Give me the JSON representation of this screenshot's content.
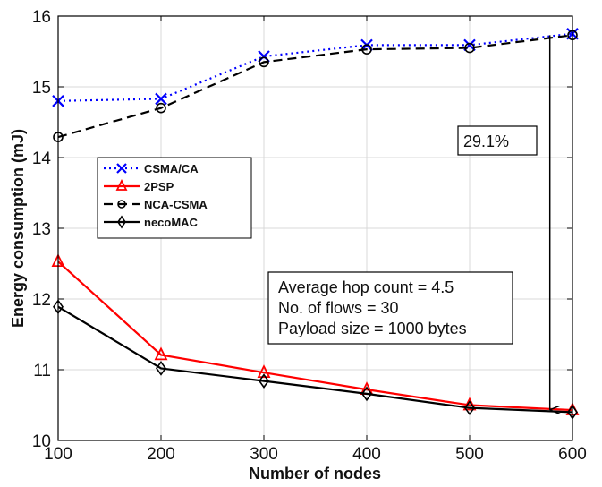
{
  "chart_data": {
    "type": "line",
    "xlabel": "Number of nodes",
    "ylabel": "Energy consumption (mJ)",
    "x": [
      100,
      200,
      300,
      400,
      500,
      600
    ],
    "xlim": [
      100,
      600
    ],
    "ylim": [
      10,
      16
    ],
    "xticks": [
      "100",
      "200",
      "300",
      "400",
      "500",
      "600"
    ],
    "yticks": [
      "10",
      "11",
      "12",
      "13",
      "14",
      "15",
      "16"
    ],
    "grid": true,
    "legend_position": "upper-left",
    "series": [
      {
        "name": "CSMA/CA",
        "color": "#0000ff",
        "dash": "dotted",
        "marker": "x",
        "values": [
          14.8,
          14.83,
          15.43,
          15.59,
          15.59,
          15.75
        ]
      },
      {
        "name": "2PSP",
        "color": "#ff0000",
        "dash": "solid",
        "marker": "triangle",
        "values": [
          12.53,
          11.21,
          10.96,
          10.72,
          10.5,
          10.43
        ]
      },
      {
        "name": "NCA-CSMA",
        "color": "#000000",
        "dash": "dashed",
        "marker": "circle",
        "values": [
          14.29,
          14.7,
          15.35,
          15.53,
          15.55,
          15.73
        ]
      },
      {
        "name": "necoMAC",
        "color": "#000000",
        "dash": "solid",
        "marker": "diamond",
        "values": [
          11.89,
          11.02,
          10.84,
          10.66,
          10.46,
          10.4
        ]
      }
    ],
    "annotations": {
      "reduction_label": "29.1%",
      "reduction_arrow": {
        "x": 578,
        "y_from": 15.73,
        "y_to": 10.42
      },
      "info_lines": [
        "Average hop count = 4.5",
        "No. of flows = 30",
        "Payload size = 1000 bytes"
      ]
    }
  }
}
